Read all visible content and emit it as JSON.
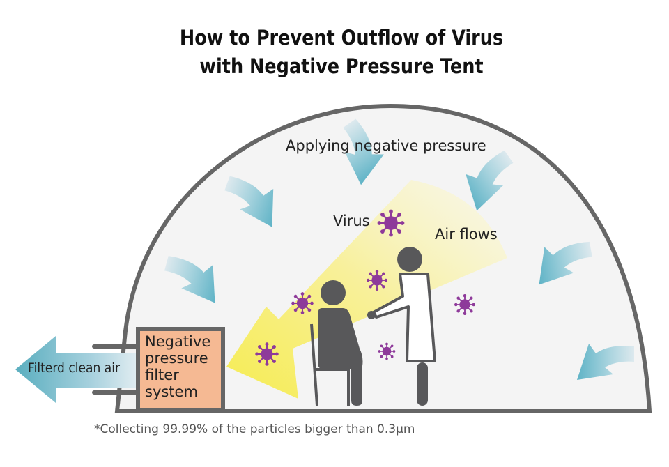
{
  "title": {
    "line1": "How to Prevent Outflow of Virus",
    "line2": "with Negative Pressure Tent"
  },
  "labels": {
    "applying": "Applying negative pressure",
    "virus": "Virus",
    "air_flows": "Air flows",
    "clean_air": "Filterd clean air",
    "filter_system": [
      "Negative",
      "pressure",
      "filter",
      "system"
    ]
  },
  "footnote": "*Collecting 99.99% of the particles bigger than 0.3µm",
  "colors": {
    "tent_outline": "#666666",
    "filter_box": "#f5b993",
    "virus": "#8e3a9a",
    "air_arrow": "#5fb3c6",
    "airflow_beam": "#f7ef6a",
    "person": "#58585a"
  }
}
